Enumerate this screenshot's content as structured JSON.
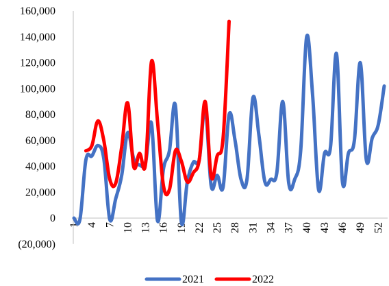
{
  "chart_data": {
    "type": "line",
    "title": "",
    "xlabel": "",
    "ylabel": "",
    "ylim": [
      -20000,
      160000
    ],
    "yticks": [
      -20000,
      0,
      20000,
      40000,
      60000,
      80000,
      100000,
      120000,
      140000,
      160000
    ],
    "ytick_labels": [
      "(20,000)",
      "0",
      "20,000",
      "40,000",
      "60,000",
      "80,000",
      "100,000",
      "120,000",
      "140,000",
      "160,000"
    ],
    "negative_tick_color": "#ff0000",
    "x_range": [
      1,
      53
    ],
    "xticks": [
      1,
      4,
      7,
      10,
      13,
      16,
      19,
      22,
      25,
      28,
      31,
      34,
      37,
      40,
      43,
      46,
      49,
      52
    ],
    "xtick_labels": [
      "1",
      "4",
      "7",
      "10",
      "13",
      "16",
      "19",
      "22",
      "25",
      "28",
      "31",
      "34",
      "37",
      "40",
      "43",
      "46",
      "49",
      "52"
    ],
    "grid": false,
    "legend_position": "bottom",
    "series": [
      {
        "name": "2021",
        "color": "#4472c4",
        "x": [
          1,
          2,
          3,
          4,
          5,
          6,
          7,
          8,
          9,
          10,
          11,
          12,
          13,
          14,
          15,
          16,
          17,
          18,
          19,
          20,
          21,
          22,
          23,
          24,
          25,
          26,
          27,
          28,
          29,
          30,
          31,
          32,
          33,
          34,
          35,
          36,
          37,
          38,
          39,
          40,
          41,
          42,
          43,
          44,
          45,
          46,
          47,
          48,
          49,
          50,
          51,
          52,
          53
        ],
        "values": [
          0,
          -1000,
          45000,
          48000,
          56000,
          46000,
          -1000,
          15000,
          33000,
          66000,
          46000,
          41000,
          43000,
          73000,
          -2000,
          38000,
          52000,
          87000,
          -3000,
          28000,
          43000,
          45000,
          85000,
          25000,
          33000,
          24000,
          80000,
          60000,
          30000,
          30000,
          93000,
          64000,
          28000,
          30000,
          35000,
          90000,
          27000,
          30000,
          52000,
          140000,
          95000,
          22000,
          50000,
          55000,
          127000,
          28000,
          50000,
          60000,
          120000,
          45000,
          62000,
          72000,
          102000
        ]
      },
      {
        "name": "2022",
        "color": "#ff0000",
        "x": [
          3,
          4,
          5,
          6,
          7,
          8,
          9,
          10,
          11,
          12,
          13,
          14,
          15,
          16,
          17,
          18,
          19,
          20,
          21,
          22,
          23,
          24,
          25,
          26,
          27
        ],
        "values": [
          52000,
          56000,
          75000,
          60000,
          30000,
          27000,
          55000,
          89000,
          40000,
          50000,
          42000,
          121000,
          75000,
          25000,
          22000,
          52000,
          44000,
          28000,
          35000,
          45000,
          90000,
          32000,
          48000,
          62000,
          152000
        ]
      }
    ]
  }
}
